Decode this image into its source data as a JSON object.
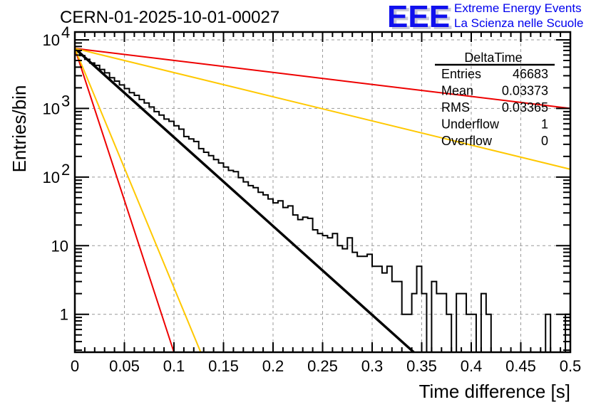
{
  "chart_data": {
    "type": "line",
    "title": "CERN-01-2025-10-01-00027",
    "xlabel": "Time difference [s]",
    "ylabel": "Entries/bin",
    "xlim": [
      0,
      0.5
    ],
    "ylim": [
      0.28,
      13000
    ],
    "yscale": "log",
    "grid": true,
    "x_ticks": [
      "0",
      "0.05",
      "0.1",
      "0.15",
      "0.2",
      "0.25",
      "0.3",
      "0.35",
      "0.4",
      "0.45",
      "0.5"
    ],
    "x_tick_values": [
      0,
      0.05,
      0.1,
      0.15,
      0.2,
      0.25,
      0.3,
      0.35,
      0.4,
      0.45,
      0.5
    ],
    "y_ticks": [
      {
        "value": 1,
        "base": "1",
        "exp": ""
      },
      {
        "value": 10,
        "base": "10",
        "exp": ""
      },
      {
        "value": 100,
        "base": "10",
        "exp": "2"
      },
      {
        "value": 1000,
        "base": "10",
        "exp": "3"
      },
      {
        "value": 10000,
        "base": "10",
        "exp": "4"
      }
    ],
    "histogram": {
      "name": "DeltaTime",
      "bin_width": 0.005,
      "values": [
        6800,
        5900,
        5200,
        4600,
        4250,
        3700,
        3300,
        2800,
        2500,
        2200,
        1950,
        1700,
        1550,
        1350,
        1200,
        1050,
        900,
        800,
        700,
        650,
        560,
        500,
        390,
        360,
        330,
        260,
        230,
        205,
        180,
        160,
        140,
        125,
        120,
        98,
        85,
        75,
        70,
        60,
        55,
        48,
        42,
        45,
        36,
        38,
        28,
        24,
        26,
        25,
        17,
        15,
        14,
        13,
        15,
        10,
        9,
        13,
        8,
        7,
        7,
        7.5,
        5,
        5,
        4,
        5,
        3,
        3,
        1,
        1,
        2,
        5,
        2,
        0,
        3,
        2,
        2,
        1,
        0,
        2,
        2,
        1,
        1,
        0,
        2,
        1,
        0,
        0,
        0,
        0,
        0,
        0,
        0,
        0,
        0,
        0,
        0,
        1,
        0,
        0,
        0,
        1,
        0,
        0,
        0,
        0
      ]
    },
    "series": [
      {
        "name": "fit",
        "color": "#000000",
        "x": [
          0,
          0.342
        ],
        "y": [
          7500,
          0.28
        ]
      },
      {
        "name": "red-shallow",
        "color": "#ee0000",
        "x": [
          0,
          0.5
        ],
        "y": [
          7500,
          1000
        ]
      },
      {
        "name": "yellow-shallow",
        "color": "#ffc800",
        "x": [
          0,
          0.5
        ],
        "y": [
          7500,
          130
        ]
      },
      {
        "name": "red-steep",
        "color": "#ee0000",
        "x": [
          0,
          0.1
        ],
        "y": [
          7500,
          0.28
        ]
      },
      {
        "name": "yellow-steep",
        "color": "#ffc800",
        "x": [
          0,
          0.127
        ],
        "y": [
          7500,
          0.28
        ]
      }
    ],
    "stats_box": {
      "title": "DeltaTime",
      "rows": [
        {
          "label": "Entries",
          "value": "46683"
        },
        {
          "label": "Mean",
          "value": "0.03373"
        },
        {
          "label": "RMS",
          "value": "0.03365"
        },
        {
          "label": "Underflow",
          "value": "1"
        },
        {
          "label": "Overflow",
          "value": "0"
        }
      ]
    }
  },
  "logo": {
    "mark": "EEE",
    "line1": "Extreme Energy Events",
    "line2": "La Scienza nelle Scuole",
    "color": "#0000ee"
  }
}
